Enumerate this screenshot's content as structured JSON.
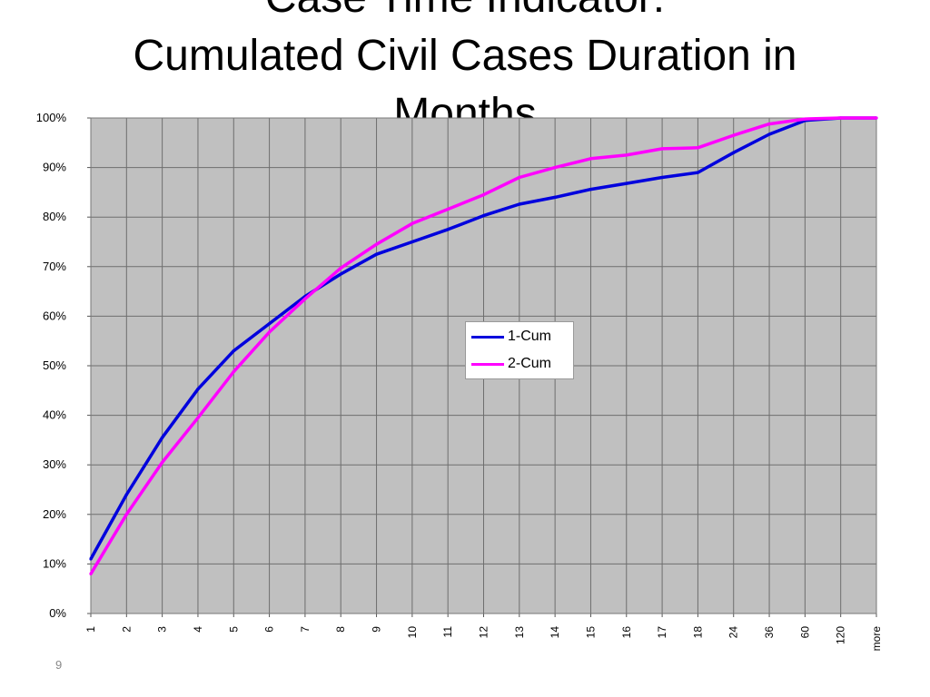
{
  "slide": {
    "title_lines": [
      "Case Time Indicator:",
      "Cumulated Civil Cases Duration in",
      "Months"
    ],
    "page_number": "9"
  },
  "chart_data": {
    "type": "line",
    "title": "",
    "xlabel": "",
    "ylabel": "",
    "ylim": [
      0,
      100
    ],
    "y_ticks": [
      "0%",
      "10%",
      "20%",
      "30%",
      "40%",
      "50%",
      "60%",
      "70%",
      "80%",
      "90%",
      "100%"
    ],
    "categories": [
      "1",
      "2",
      "3",
      "4",
      "5",
      "6",
      "7",
      "8",
      "9",
      "10",
      "11",
      "12",
      "13",
      "14",
      "15",
      "16",
      "17",
      "18",
      "24",
      "36",
      "60",
      "120",
      "more"
    ],
    "grid": true,
    "legend_position": "center-right",
    "background_color": "#c0c0c0",
    "series": [
      {
        "name": "1-Cum",
        "color": "#0000dd",
        "values": [
          11,
          24,
          35.5,
          45.3,
          53,
          58.5,
          64,
          68.5,
          72.5,
          75,
          77.5,
          80.3,
          82.6,
          84,
          85.6,
          86.8,
          88,
          89,
          93,
          96.7,
          99.5,
          100,
          100
        ]
      },
      {
        "name": "2-Cum",
        "color": "#ff00ff",
        "values": [
          8,
          20,
          30.5,
          39.5,
          48.8,
          56.8,
          63.5,
          69.7,
          74.5,
          78.7,
          81.6,
          84.5,
          88,
          90,
          91.8,
          92.5,
          93.8,
          94,
          96.5,
          98.8,
          99.8,
          100,
          100
        ]
      }
    ]
  }
}
